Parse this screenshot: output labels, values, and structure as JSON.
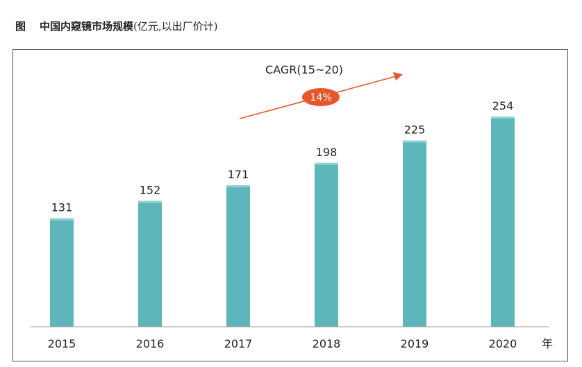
{
  "header": {
    "figure_label": "图",
    "title": "中国内窥镜市场规模",
    "unit": "(亿元,以出厂价计)"
  },
  "annotation": {
    "cagr_label": "CAGR(15~20)",
    "cagr_value": "14%"
  },
  "colors": {
    "bar": "#5cb6ba",
    "bar_top": "#8fd0d3",
    "arrow": "#e8572c",
    "badge": "#e8572c",
    "axis": "#9a9a9a"
  },
  "chart_data": {
    "type": "bar",
    "categories": [
      "2015",
      "2016",
      "2017",
      "2018",
      "2019",
      "2020"
    ],
    "values": [
      131,
      152,
      171,
      198,
      225,
      254
    ],
    "xlabel": "年",
    "ylabel": "",
    "ylim": [
      0,
      280
    ],
    "grid": false,
    "legend": "none"
  }
}
